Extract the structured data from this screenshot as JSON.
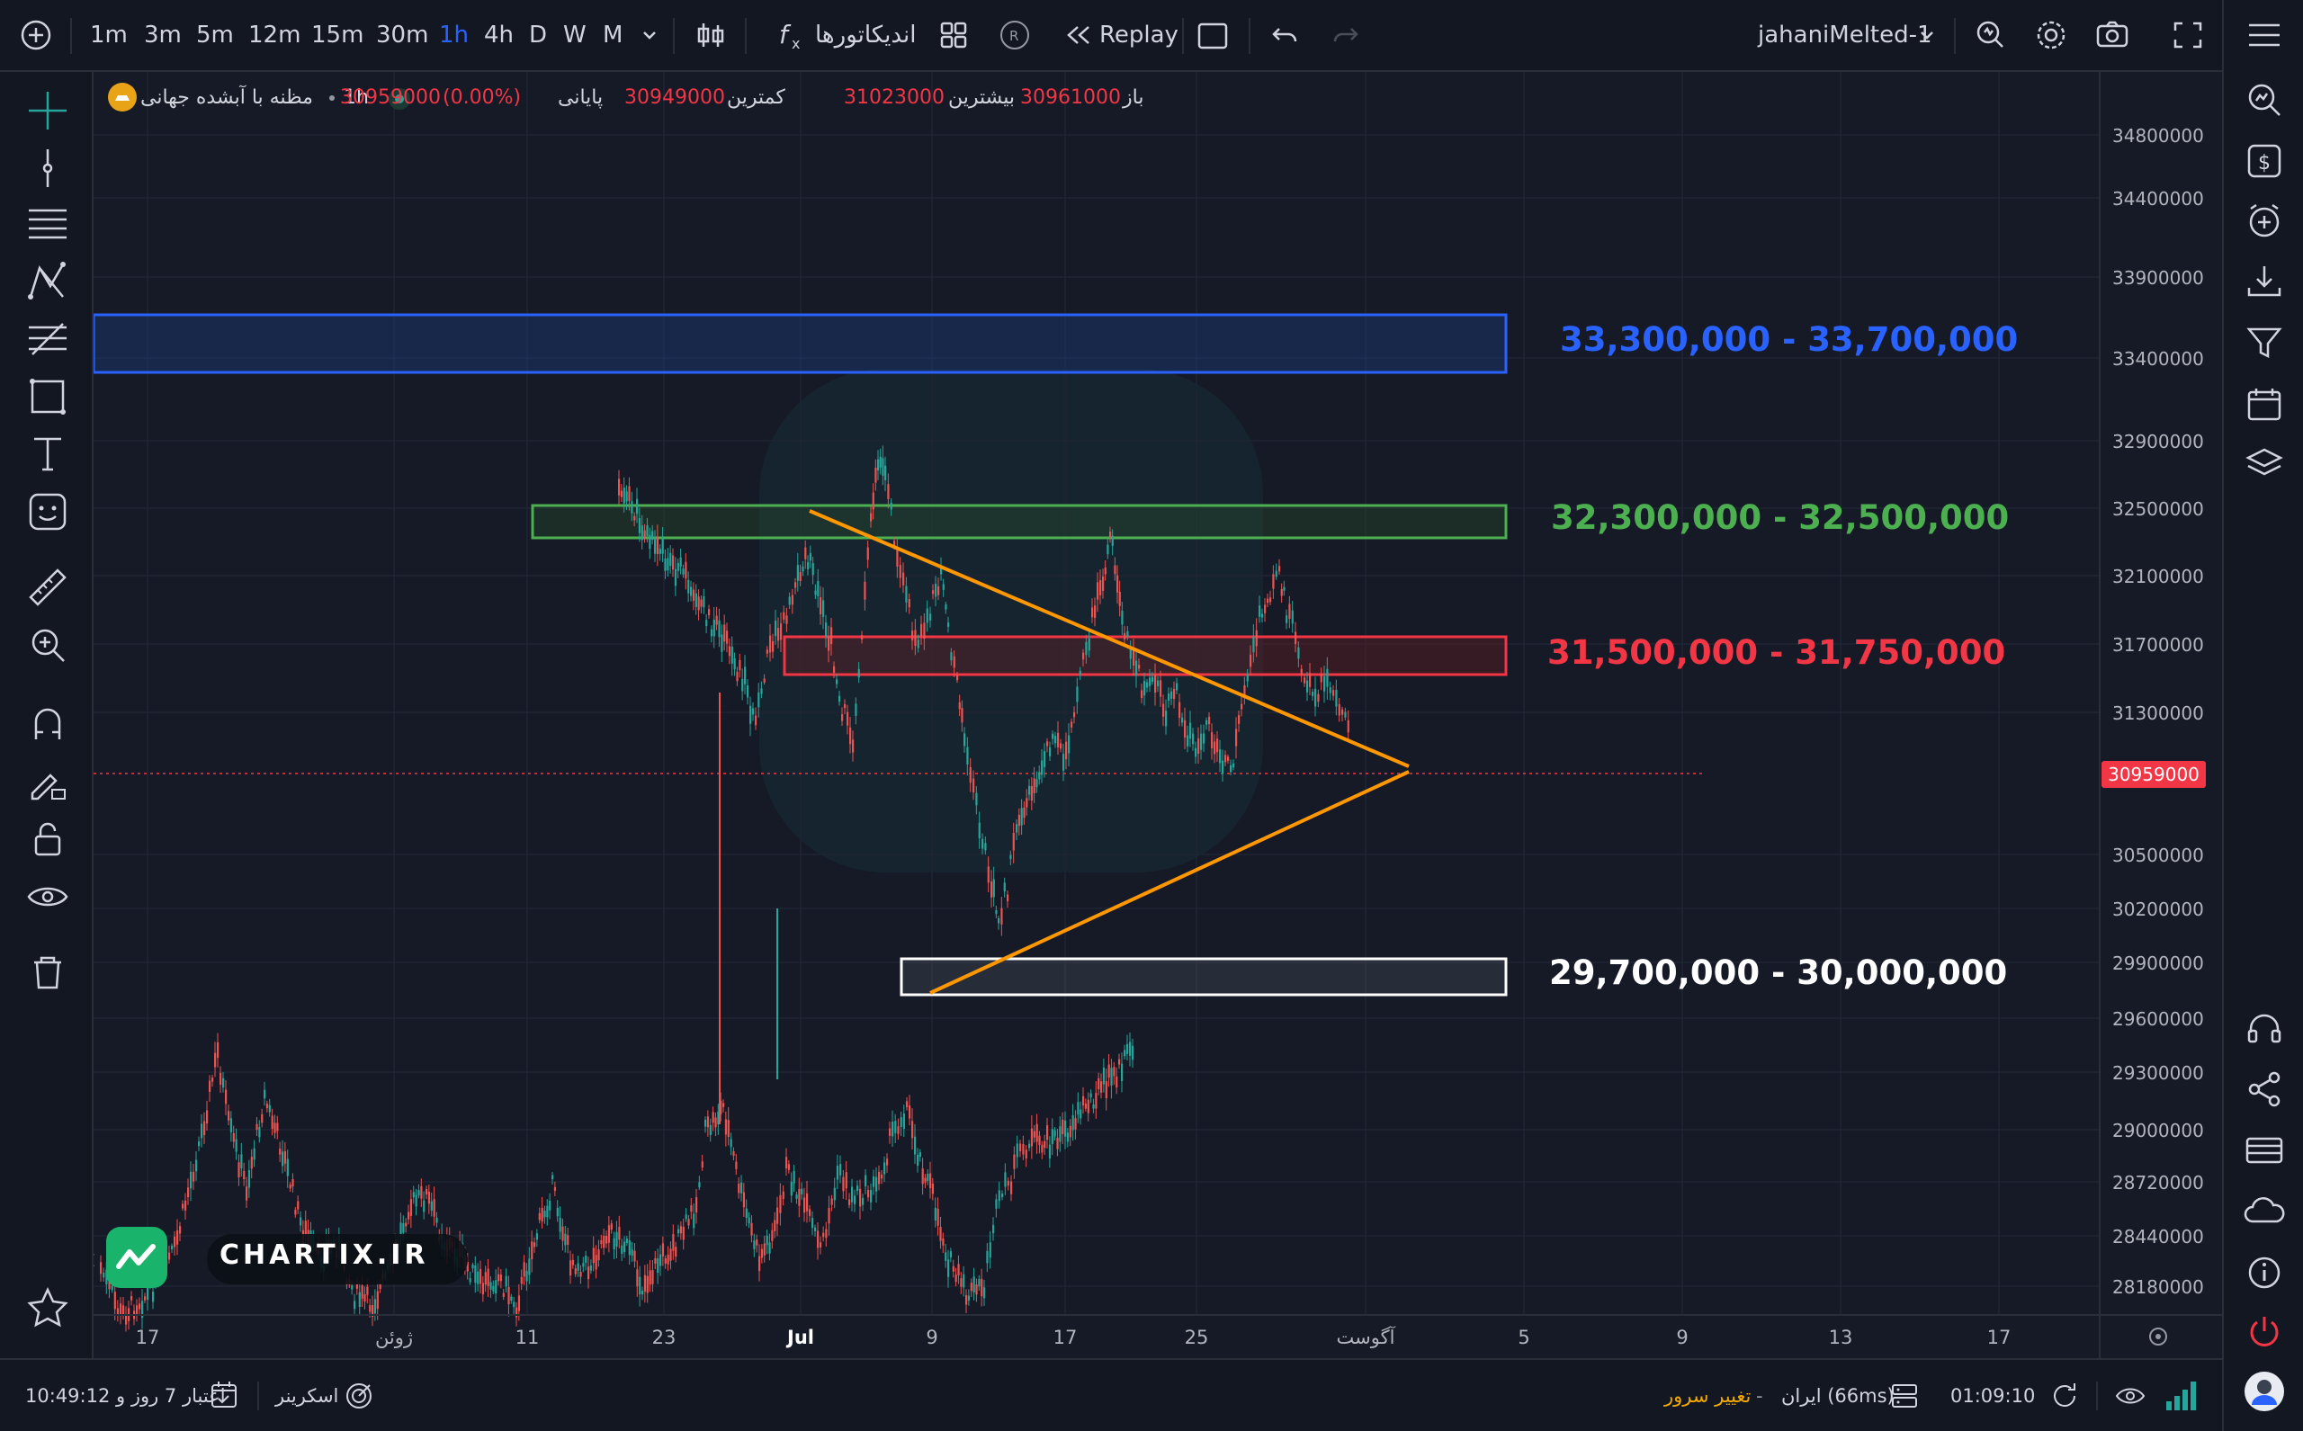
{
  "toolbar": {
    "timeframes": [
      "1m",
      "3m",
      "5m",
      "12m",
      "15m",
      "30m",
      "1h",
      "4h",
      "D",
      "W",
      "M"
    ],
    "active_timeframe": "1h",
    "indicators_label": "اندیکاتورها",
    "replay_label": "Replay",
    "layout_name": "jahaniMelted-1"
  },
  "legend": {
    "symbol": "مظنه با آبشده جهانی",
    "interval": "1h",
    "open_label": "باز",
    "open_value": "30961000",
    "high_label": "بیشترین",
    "high_value": "31023000",
    "low_label": "کمترین",
    "low_value": "30949000",
    "close_label": "پایانی",
    "close_value": "30959000",
    "change_value": "(0.00%)"
  },
  "price_axis": {
    "labels": [
      "34800000",
      "34400000",
      "33900000",
      "33400000",
      "32900000",
      "32500000",
      "32100000",
      "31700000",
      "31300000",
      "30500000",
      "30200000",
      "29900000",
      "29600000",
      "29300000",
      "29000000",
      "28720000",
      "28440000",
      "28180000"
    ],
    "last_price": "30959000",
    "last_price_color": "#f23645"
  },
  "time_axis": {
    "labels": [
      "17",
      "ژوئن",
      "11",
      "23",
      "Jul",
      "9",
      "17",
      "25",
      "آگوست",
      "5",
      "9",
      "13",
      "17"
    ]
  },
  "zones": [
    {
      "label": "33,300,000 - 33,700,000",
      "color": "#2962ff"
    },
    {
      "label": "32,300,000 - 32,500,000",
      "color": "#4caf50"
    },
    {
      "label": "31,500,000 - 31,750,000",
      "color": "#f23645"
    },
    {
      "label": "29,700,000 - 30,000,000",
      "color": "#ffffff"
    }
  ],
  "pattern_color": "#ff9800",
  "watermark": "CHARTIX.IR",
  "bottombar": {
    "credit_label": "اعتبار 7 روز و 10:49:12",
    "screener_label": "اسکرینر",
    "server_change_label": "تغییر سرور",
    "server_info": "ایران (66ms)",
    "dash": "-",
    "clock": "01:09:10"
  },
  "icons": {
    "top": [
      "add-symbol-icon",
      "bar-style-icon",
      "indicators-fx-icon",
      "templates-grid-icon",
      "r-icon",
      "replay-icon",
      "rectangle-icon",
      "undo-icon",
      "redo-icon",
      "chevron-down-icon",
      "alert-icon",
      "gear-icon",
      "camera-icon",
      "fullscreen-icon"
    ],
    "left": [
      "crosshair-icon",
      "trend-line-icon",
      "horizontal-lines-icon",
      "pattern-icon",
      "fib-icon",
      "shapes-icon",
      "text-icon",
      "emoji-icon",
      "ruler-icon",
      "zoom-icon",
      "magnet-icon",
      "pencil-lock-icon",
      "lock-icon",
      "eye-icon",
      "trash-icon",
      "star-icon"
    ],
    "right": [
      "menu-icon",
      "search-chart-icon",
      "dollar-icon",
      "add-alert-icon",
      "download-icon",
      "filter-icon",
      "calendar-icon",
      "layers-icon",
      "support-icon",
      "share-icon",
      "card-icon",
      "cloud-icon",
      "info-icon",
      "power-icon",
      "avatar"
    ]
  }
}
